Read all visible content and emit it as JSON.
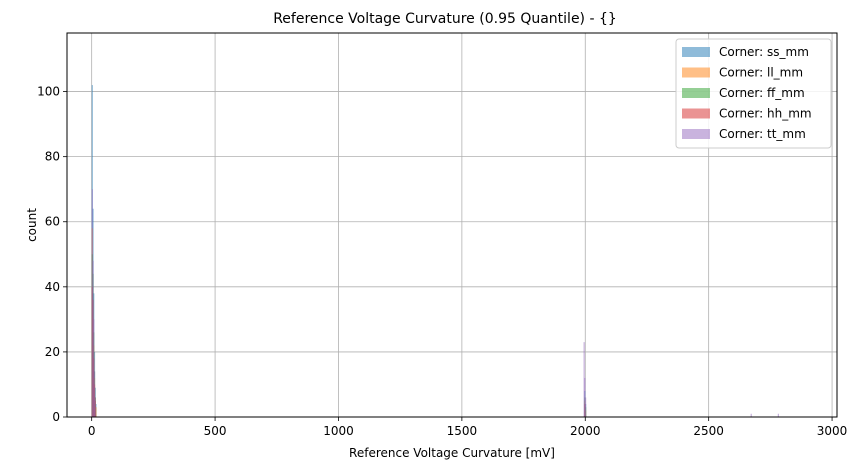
{
  "chart_data": {
    "type": "bar",
    "subtype": "overlaid-histogram",
    "title": "Reference Voltage Curvature (0.95 Quantile) - {}",
    "xlabel": "Reference Voltage Curvature [mV]",
    "ylabel": "count",
    "xlim": [
      -100,
      3020
    ],
    "ylim": [
      0,
      118
    ],
    "xticks": [
      0,
      500,
      1000,
      1500,
      2000,
      2500,
      3000
    ],
    "yticks": [
      0,
      20,
      40,
      60,
      80,
      100
    ],
    "grid": true,
    "legend_position": "top-right",
    "series": [
      {
        "name": "Corner: ss_mm",
        "color": "#1f77b4",
        "bins": [
          [
            0,
            102
          ],
          [
            3,
            64
          ],
          [
            6,
            38
          ],
          [
            9,
            20
          ],
          [
            12,
            9
          ],
          [
            15,
            4
          ],
          [
            1996,
            8
          ],
          [
            1999,
            4
          ]
        ]
      },
      {
        "name": "Corner: ll_mm",
        "color": "#ff7f0e",
        "bins": [
          [
            0,
            58
          ],
          [
            3,
            30
          ],
          [
            6,
            22
          ],
          [
            9,
            12
          ],
          [
            12,
            6
          ],
          [
            15,
            3
          ],
          [
            1996,
            5
          ],
          [
            1999,
            2
          ]
        ]
      },
      {
        "name": "Corner: ff_mm",
        "color": "#2ca02c",
        "bins": [
          [
            0,
            50
          ],
          [
            3,
            44
          ],
          [
            6,
            26
          ],
          [
            9,
            14
          ],
          [
            12,
            6
          ],
          [
            1996,
            6
          ],
          [
            1999,
            3
          ]
        ]
      },
      {
        "name": "Corner: hh_mm",
        "color": "#d62728",
        "bins": [
          [
            0,
            40
          ],
          [
            3,
            36
          ],
          [
            6,
            18
          ],
          [
            9,
            10
          ],
          [
            12,
            5
          ],
          [
            1996,
            4
          ]
        ]
      },
      {
        "name": "Corner: tt_mm",
        "color": "#9467bd",
        "bins": [
          [
            0,
            70
          ],
          [
            3,
            48
          ],
          [
            6,
            30
          ],
          [
            9,
            14
          ],
          [
            12,
            6
          ],
          [
            1993,
            23
          ],
          [
            1996,
            12
          ],
          [
            1999,
            6
          ],
          [
            2670,
            1
          ],
          [
            2780,
            1
          ]
        ]
      }
    ]
  }
}
